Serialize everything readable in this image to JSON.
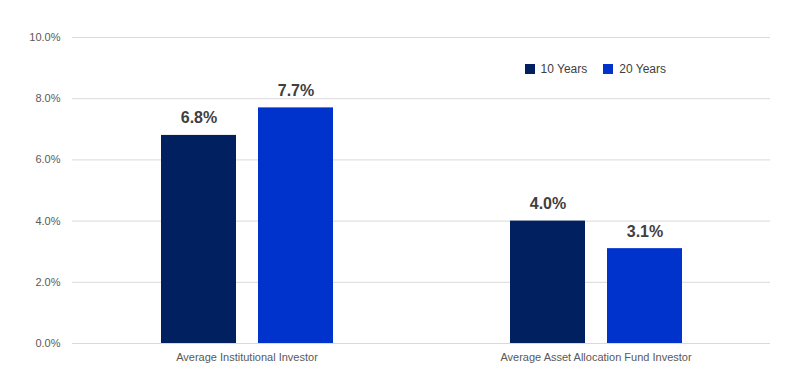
{
  "chart_data": {
    "type": "bar",
    "categories": [
      "Average Institutional Investor",
      "Average Asset Allocation Fund Investor"
    ],
    "series": [
      {
        "name": "10 Years",
        "color": "#002060",
        "values": [
          6.8,
          4.0
        ],
        "value_labels": [
          "6.8%",
          "4.0%"
        ]
      },
      {
        "name": "20 Years",
        "color": "#0033cc",
        "values": [
          7.7,
          3.1
        ],
        "value_labels": [
          "7.7%",
          "3.1%"
        ]
      }
    ],
    "ylim": [
      0,
      10
    ],
    "yticks": [
      {
        "value": 0,
        "label": "0.0%"
      },
      {
        "value": 2,
        "label": "2.0%"
      },
      {
        "value": 4,
        "label": "4.0%"
      },
      {
        "value": 6,
        "label": "6.0%"
      },
      {
        "value": 8,
        "label": "8.0%"
      },
      {
        "value": 10,
        "label": "10.0%"
      }
    ],
    "grid": true,
    "legend": "top-right",
    "data_labels": true
  }
}
